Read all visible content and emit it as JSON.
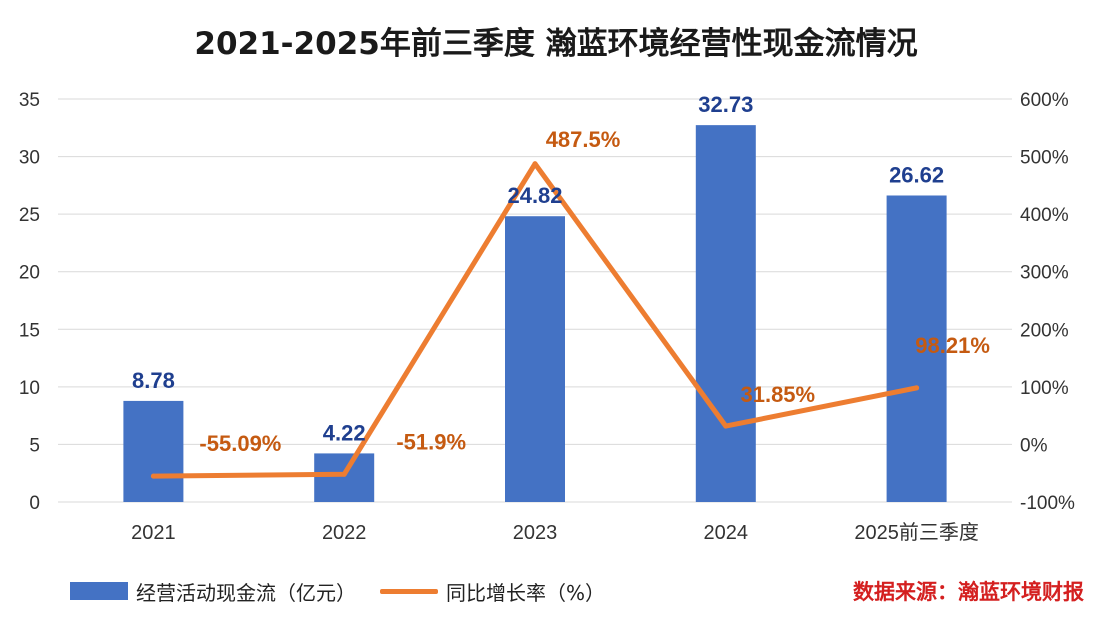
{
  "title": "2021-2025年前三季度 瀚蓝环境经营性现金流情况",
  "source": "数据来源：瀚蓝环境财报",
  "colors": {
    "bar": "#4472C4",
    "line": "#ED7D31",
    "bar_label": "#1F3F8F",
    "line_label": "#C55A11",
    "grid": "#D9D9D9",
    "axis_text": "#333333"
  },
  "chart_data": {
    "type": "bar",
    "title": "2021-2025年前三季度 瀚蓝环境经营性现金流情况",
    "categories": [
      "2021",
      "2022",
      "2023",
      "2024",
      "2025前三季度"
    ],
    "series": [
      {
        "name": "经营活动现金流（亿元）",
        "type": "bar",
        "axis": "left",
        "values": [
          8.78,
          4.22,
          24.82,
          32.73,
          26.62
        ],
        "labels": [
          "8.78",
          "4.22",
          "24.82",
          "32.73",
          "26.62"
        ]
      },
      {
        "name": "同比增长率（%）",
        "type": "line",
        "axis": "right",
        "values": [
          -55.09,
          -51.9,
          487.5,
          31.85,
          98.21
        ],
        "labels": [
          "-55.09%",
          "-51.9%",
          "487.5%",
          "31.85%",
          "98.21%"
        ]
      }
    ],
    "y_left": {
      "min": 0,
      "max": 35,
      "ticks": [
        "0",
        "5",
        "10",
        "15",
        "20",
        "25",
        "30",
        "35"
      ]
    },
    "y_right": {
      "min": -100,
      "max": 600,
      "ticks": [
        "-100%",
        "0%",
        "100%",
        "200%",
        "300%",
        "400%",
        "500%",
        "600%"
      ]
    },
    "grid": true,
    "legend_position": "bottom-left"
  }
}
